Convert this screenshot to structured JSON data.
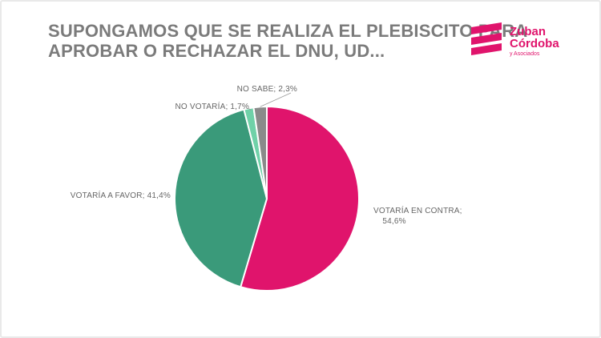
{
  "title": {
    "line1": "SUPONGAMOS QUE SE REALIZA EL PLEBISCITO PARA",
    "line2": "APROBAR O RECHAZAR EL DNU, UD..."
  },
  "logo": {
    "name_line1": "Zuban",
    "name_line2": "Córdoba",
    "subtitle": "y Asociados",
    "brand_color": "#e0146c"
  },
  "chart_data": {
    "type": "pie",
    "slices": [
      {
        "label": "VOTARÍA EN CONTRA",
        "value": 54.6,
        "display": "VOTARÍA EN CONTRA;",
        "display2": "54,6%",
        "color": "#e0146c"
      },
      {
        "label": "VOTARÍA A FAVOR",
        "value": 41.4,
        "display": "VOTARÍA A FAVOR; 41,4%",
        "color": "#3a9a7a"
      },
      {
        "label": "NO VOTARÍA",
        "value": 1.7,
        "display": "NO VOTARÍA; 1,7%",
        "color": "#6fd1a8"
      },
      {
        "label": "NO SABE",
        "value": 2.3,
        "display": "NO SABE; 2,3%",
        "color": "#8a8a8a"
      }
    ]
  }
}
